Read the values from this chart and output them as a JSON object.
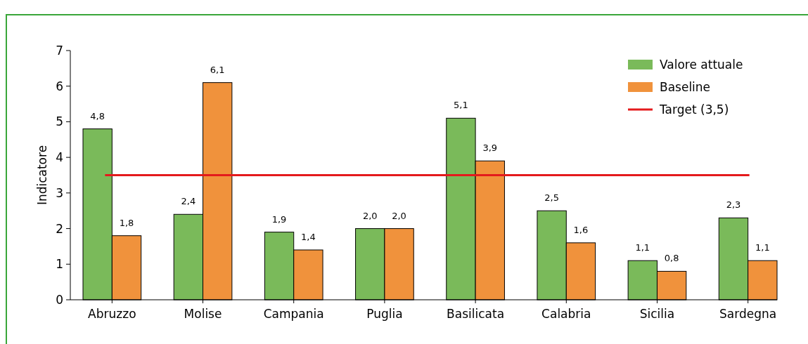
{
  "chart_data": {
    "type": "bar",
    "ylabel": "Indicatore",
    "categories": [
      "Abruzzo",
      "Molise",
      "Campania",
      "Puglia",
      "Basilicata",
      "Calabria",
      "Sicilia",
      "Sardegna"
    ],
    "series": [
      {
        "name": "Valore attuale",
        "color": "#7aba5a",
        "values": [
          4.8,
          2.4,
          1.9,
          2.0,
          5.1,
          2.5,
          1.1,
          2.3
        ],
        "value_labels": [
          "4,8",
          "2,4",
          "1,9",
          "2,0",
          "5,1",
          "2,5",
          "1,1",
          "2,3"
        ]
      },
      {
        "name": "Baseline",
        "color": "#f0923c",
        "values": [
          1.8,
          6.1,
          1.4,
          2.0,
          3.9,
          1.6,
          0.8,
          1.1
        ],
        "value_labels": [
          "1,8",
          "6,1",
          "1,4",
          "2,0",
          "3,9",
          "1,6",
          "0,8",
          "1,1"
        ]
      }
    ],
    "ref_lines": [
      {
        "axis": "y",
        "value": 3.5,
        "label": "Target (3,5)",
        "color": "#e41a1c"
      }
    ],
    "ylim": [
      0,
      7
    ],
    "yticks": [
      0,
      1,
      2,
      3,
      4,
      5,
      6,
      7
    ],
    "grid": false,
    "legend": "top right"
  }
}
